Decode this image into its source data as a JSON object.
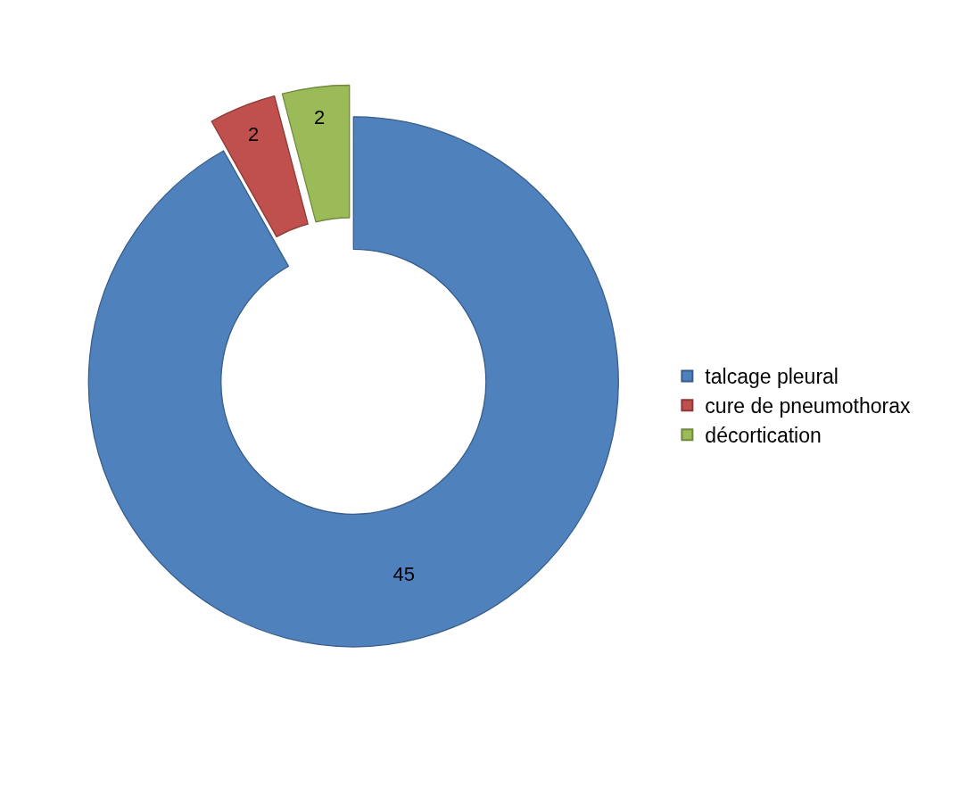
{
  "chart_data": {
    "type": "donut",
    "categories": [
      "talcage pleural",
      "cure de pneumothorax",
      "décortication"
    ],
    "values": [
      45,
      2,
      2
    ],
    "colors": [
      "#4f81bd",
      "#c0504d",
      "#9bbb59"
    ],
    "data_labels": true,
    "legend": "right"
  }
}
